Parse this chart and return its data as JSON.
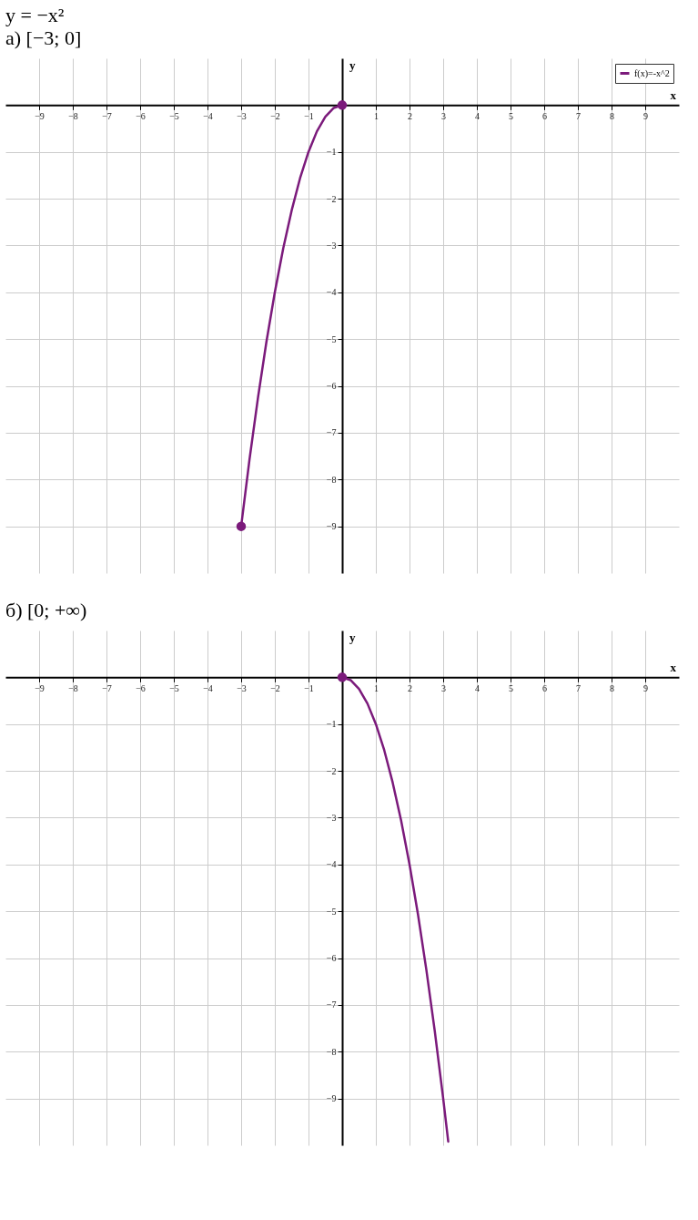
{
  "chart_data": [
    {
      "type": "line",
      "title": "y = −x²",
      "subtitle": "а) [−3; 0]",
      "xlabel": "x",
      "ylabel": "y",
      "xlim": [
        -10,
        10
      ],
      "ylim": [
        -10,
        1
      ],
      "xticks": [
        -9,
        -8,
        -7,
        -6,
        -5,
        -4,
        -3,
        -2,
        -1,
        1,
        2,
        3,
        4,
        5,
        6,
        7,
        8,
        9
      ],
      "yticks": [
        -9,
        -8,
        -7,
        -6,
        -5,
        -4,
        -3,
        -2,
        -1
      ],
      "grid": true,
      "legend": "top right",
      "series": [
        {
          "name": "f(x)=-x^2",
          "color": "#7b1a7b",
          "x": [
            -3,
            -2.75,
            -2.5,
            -2.25,
            -2,
            -1.75,
            -1.5,
            -1.25,
            -1,
            -0.75,
            -0.5,
            -0.25,
            0
          ],
          "values": [
            -9,
            -7.56,
            -6.25,
            -5.06,
            -4,
            -3.06,
            -2.25,
            -1.56,
            -1,
            -0.56,
            -0.25,
            -0.06,
            0
          ]
        },
        {
          "type": "scatter",
          "marker": "circle",
          "color": "#7b1a7b",
          "x": [
            -3,
            0
          ],
          "values": [
            -9,
            0
          ]
        }
      ]
    },
    {
      "type": "line",
      "title": "б) [0; +∞)",
      "xlabel": "x",
      "ylabel": "y",
      "xlim": [
        -10,
        10
      ],
      "ylim": [
        -10,
        1
      ],
      "xticks": [
        -9,
        -8,
        -7,
        -6,
        -5,
        -4,
        -3,
        -2,
        -1,
        1,
        2,
        3,
        4,
        5,
        6,
        7,
        8,
        9
      ],
      "yticks": [
        -9,
        -8,
        -7,
        -6,
        -5,
        -4,
        -3,
        -2,
        -1
      ],
      "grid": true,
      "legend": "top right",
      "series": [
        {
          "name": "f(x)=-x^2",
          "color": "#7b1a7b",
          "x": [
            0,
            0.25,
            0.5,
            0.75,
            1,
            1.25,
            1.5,
            1.75,
            2,
            2.25,
            2.5,
            2.75,
            3,
            3.15
          ],
          "values": [
            0,
            -0.06,
            -0.25,
            -0.56,
            -1,
            -1.56,
            -2.25,
            -3.06,
            -4,
            -5.06,
            -6.25,
            -7.56,
            -9,
            -9.92
          ]
        },
        {
          "type": "scatter",
          "marker": "circle",
          "color": "#7b1a7b",
          "x": [
            0
          ],
          "values": [
            0
          ]
        }
      ]
    }
  ]
}
